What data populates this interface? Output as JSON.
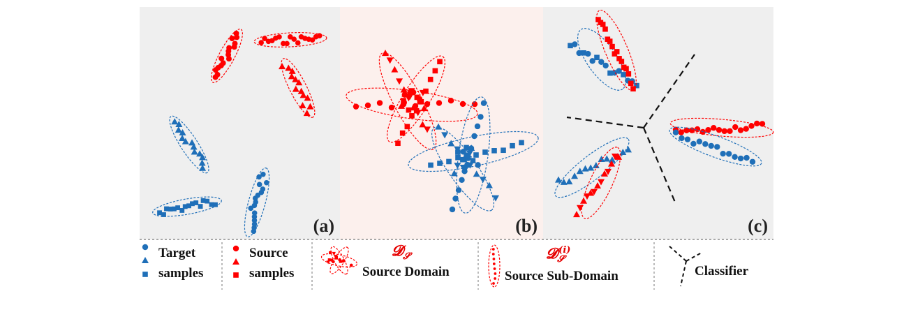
{
  "panels": {
    "a": {
      "label": "(a)"
    },
    "b": {
      "label": "(b)"
    },
    "c": {
      "label": "(c)"
    }
  },
  "legend": {
    "target": {
      "line1": "Target",
      "line2": "samples"
    },
    "source": {
      "line1": "Source",
      "line2": "samples"
    },
    "domain": {
      "symbol": "𝓓",
      "subscript": "𝓢",
      "label": "Source Domain"
    },
    "subdomain": {
      "symbol": "𝓓",
      "subscript": "𝓢",
      "superscript": "(i)",
      "label": "Source Sub-Domain"
    },
    "classifier": {
      "label": "Classifier"
    }
  },
  "colors": {
    "source": "#ff0000",
    "target": "#1f6fb8",
    "panel_gray": "#efefef",
    "panel_pink": "#fcf0ed"
  }
}
